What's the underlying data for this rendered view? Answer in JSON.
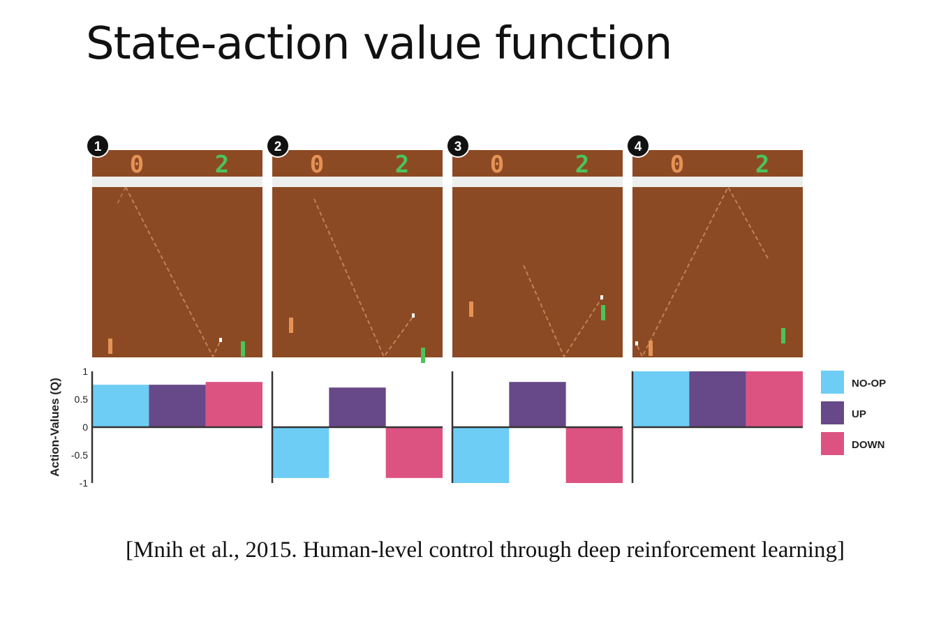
{
  "title": "State-action value function",
  "citation": "[Mnih et al., 2015. Human-level control through deep reinforcement learning]",
  "frames": [
    {
      "badge": "1",
      "score_left": "0",
      "score_right": "2"
    },
    {
      "badge": "2",
      "score_left": "0",
      "score_right": "2"
    },
    {
      "badge": "3",
      "score_left": "0",
      "score_right": "2"
    },
    {
      "badge": "4",
      "score_left": "0",
      "score_right": "2"
    }
  ],
  "colors": {
    "court": "#8c4a24",
    "wall": "#ecefec",
    "left_paddle": "#e59354",
    "right_paddle": "#4cc35a",
    "no_op": "#6dcdf5",
    "up": "#674888",
    "down": "#dc5382",
    "badge": "#111111"
  },
  "chart_data": {
    "type": "bar",
    "ylabel": "Action-Values (Q)",
    "ylim": [
      -1,
      1
    ],
    "yticks": [
      "1",
      "0.5",
      "0",
      "-0.5",
      "-1"
    ],
    "legend_position": "right",
    "categories": [
      "1",
      "2",
      "3",
      "4"
    ],
    "series": [
      {
        "name": "NO-OP",
        "color": "#6dcdf5",
        "values": [
          0.76,
          -0.91,
          -1.0,
          1.0
        ]
      },
      {
        "name": "UP",
        "color": "#674888",
        "values": [
          0.76,
          0.71,
          0.81,
          1.0
        ]
      },
      {
        "name": "DOWN",
        "color": "#dc5382",
        "values": [
          0.81,
          -0.91,
          -1.0,
          1.0
        ]
      }
    ]
  }
}
